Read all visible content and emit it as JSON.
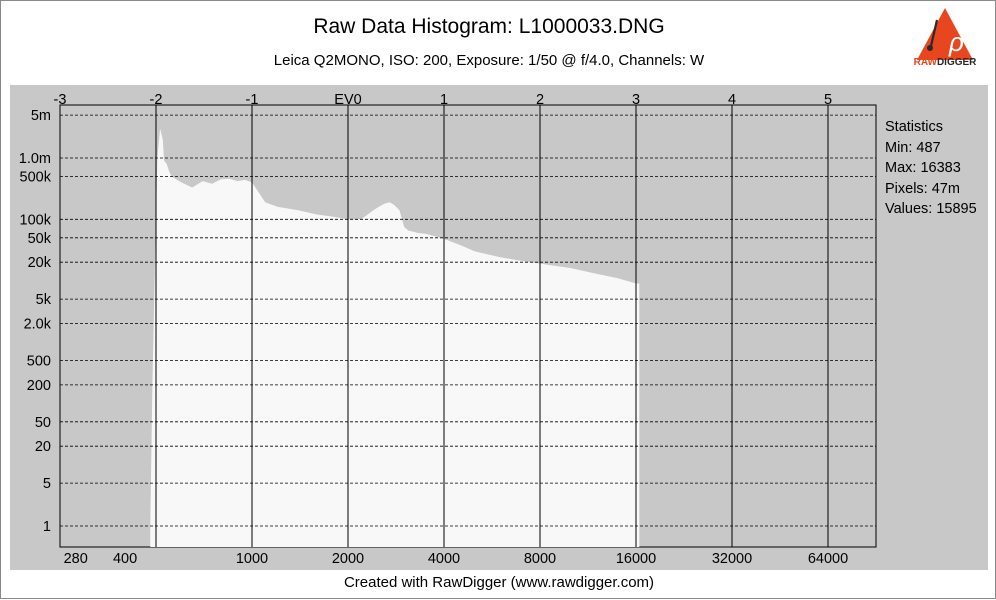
{
  "window": {
    "title": "Raw Data Histogram: L1000033.DNG",
    "subtitle": "Leica Q2MONO, ISO: 200, Exposure: 1/50 @ f/4.0, Channels: W",
    "footer": "Created with RawDigger (www.rawdigger.com)",
    "logo_text_left": "RAW",
    "logo_text_right": "DIGGER"
  },
  "colors": {
    "plot_band": "#c8c8c8",
    "plot_area": "#c8c8c8",
    "histogram_fill": "#f8f8f8",
    "logo_orange": "#e8461e"
  },
  "statistics": {
    "heading": "Statistics",
    "min": "Min: 487",
    "max": "Max: 16383",
    "pixels": "Pixels: 47m",
    "values": "Values: 15895"
  },
  "chart_data": {
    "type": "area",
    "title": "Raw Data Histogram: L1000033.DNG",
    "subtitle": "Leica Q2MONO, ISO: 200, Exposure: 1/50 @ f/4.0, Channels: W",
    "x_scale": "log2",
    "y_scale": "log",
    "grid": true,
    "x_bottom_ticks": [
      "280",
      "400",
      "1000",
      "2000",
      "4000",
      "8000",
      "16000",
      "32000",
      "64000"
    ],
    "x_bottom_tick_values": [
      280,
      400,
      1000,
      2000,
      4000,
      8000,
      16000,
      32000,
      64000
    ],
    "x_top_ticks": [
      "-3",
      "-2",
      "-1",
      "EV0",
      "1",
      "2",
      "3",
      "4",
      "5"
    ],
    "x_top_tick_values": [
      250,
      500,
      1000,
      2000,
      4000,
      8000,
      16000,
      32000,
      64000
    ],
    "y_ticks": [
      "5m",
      "1.0m",
      "500k",
      "100k",
      "50k",
      "20k",
      "5k",
      "2.0k",
      "500",
      "200",
      "50",
      "20",
      "5",
      "1"
    ],
    "y_tick_values": [
      5000000,
      1000000,
      500000,
      100000,
      50000,
      20000,
      5000,
      2000,
      500,
      200,
      50,
      20,
      5,
      1
    ],
    "xlim": [
      250,
      100000
    ],
    "ylim": [
      0.5,
      5000000
    ],
    "series": [
      {
        "x": [
          480,
          487,
          495,
          505,
          515,
          525,
          530,
          540,
          550,
          560,
          600,
          650,
          700,
          750,
          800,
          850,
          900,
          950,
          1000,
          1100,
          1200,
          1400,
          1600,
          1800,
          2000,
          2200,
          2400,
          2500,
          2600,
          2700,
          2800,
          2900,
          3000,
          3100,
          3200,
          3300,
          3500,
          3800,
          4000,
          4500,
          5000,
          6000,
          7000,
          8000,
          10000,
          12000,
          14000,
          16000,
          16383
        ],
        "values": [
          1,
          200,
          10000,
          1000000,
          3000000,
          2000000,
          900000,
          800000,
          600000,
          500000,
          400000,
          330000,
          420000,
          380000,
          450000,
          460000,
          420000,
          440000,
          400000,
          190000,
          160000,
          140000,
          120000,
          110000,
          100000,
          100000,
          140000,
          160000,
          180000,
          190000,
          170000,
          140000,
          75000,
          65000,
          63000,
          60000,
          58000,
          52000,
          48000,
          38000,
          30000,
          24000,
          21000,
          19000,
          16000,
          13000,
          11000,
          9000,
          9000
        ]
      }
    ]
  }
}
